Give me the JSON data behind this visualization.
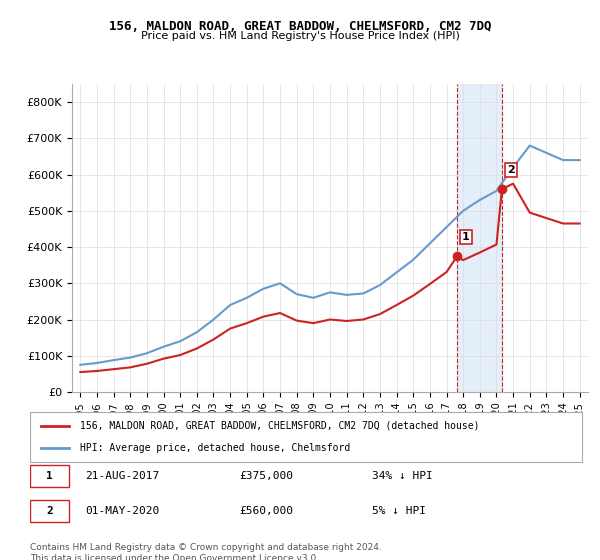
{
  "title": "156, MALDON ROAD, GREAT BADDOW, CHELMSFORD, CM2 7DQ",
  "subtitle": "Price paid vs. HM Land Registry's House Price Index (HPI)",
  "hpi_label": "HPI: Average price, detached house, Chelmsford",
  "property_label": "156, MALDON ROAD, GREAT BADDOW, CHELMSFORD, CM2 7DQ (detached house)",
  "footer": "Contains HM Land Registry data © Crown copyright and database right 2024.\nThis data is licensed under the Open Government Licence v3.0.",
  "sale1_label": "1",
  "sale1_date": "21-AUG-2017",
  "sale1_price": "£375,000",
  "sale1_hpi": "34% ↓ HPI",
  "sale2_label": "2",
  "sale2_date": "01-MAY-2020",
  "sale2_price": "£560,000",
  "sale2_hpi": "5% ↓ HPI",
  "sale1_year": 2017.64,
  "sale2_year": 2020.33,
  "sale1_price_val": 375000,
  "sale2_price_val": 560000,
  "ylim": [
    0,
    850000
  ],
  "yticks": [
    0,
    100000,
    200000,
    300000,
    400000,
    500000,
    600000,
    700000,
    800000
  ],
  "ytick_labels": [
    "£0",
    "£100K",
    "£200K",
    "£300K",
    "£400K",
    "£500K",
    "£600K",
    "£700K",
    "£800K"
  ],
  "hpi_color": "#6699cc",
  "property_color": "#cc2222",
  "sale_marker_color1": "#cc2222",
  "sale_marker_color2": "#cc2222",
  "shade_color": "#cce0f5",
  "grid_color": "#dddddd",
  "background_color": "#ffffff",
  "hpi_years": [
    1995,
    1996,
    1997,
    1998,
    1999,
    2000,
    2001,
    2002,
    2003,
    2004,
    2005,
    2006,
    2007,
    2008,
    2009,
    2010,
    2011,
    2012,
    2013,
    2014,
    2015,
    2016,
    2017,
    2018,
    2019,
    2020,
    2021,
    2022,
    2023,
    2024,
    2025
  ],
  "hpi_values": [
    75000,
    80000,
    88000,
    95000,
    107000,
    125000,
    140000,
    165000,
    200000,
    240000,
    260000,
    285000,
    300000,
    270000,
    260000,
    275000,
    268000,
    272000,
    295000,
    330000,
    365000,
    410000,
    455000,
    500000,
    530000,
    555000,
    620000,
    680000,
    660000,
    640000,
    640000
  ],
  "property_years": [
    1995,
    1996,
    1997,
    1998,
    1999,
    2000,
    2001,
    2002,
    2003,
    2004,
    2005,
    2006,
    2007,
    2008,
    2009,
    2010,
    2011,
    2012,
    2013,
    2014,
    2015,
    2016,
    2017,
    2017.64,
    2018,
    2019,
    2020,
    2020.33,
    2021,
    2022,
    2023,
    2024,
    2025
  ],
  "property_values": [
    55000,
    58000,
    63000,
    68000,
    78000,
    92000,
    102000,
    120000,
    145000,
    175000,
    190000,
    208000,
    218000,
    197000,
    190000,
    200000,
    196000,
    200000,
    215000,
    240000,
    266000,
    298000,
    331000,
    375000,
    364000,
    385000,
    407000,
    560000,
    575000,
    495000,
    480000,
    465000,
    465000
  ],
  "xlim_start": 1994.5,
  "xlim_end": 2025.5,
  "xticks": [
    1995,
    1996,
    1997,
    1998,
    1999,
    2000,
    2001,
    2002,
    2003,
    2004,
    2005,
    2006,
    2007,
    2008,
    2009,
    2010,
    2011,
    2012,
    2013,
    2014,
    2015,
    2016,
    2017,
    2018,
    2019,
    2020,
    2021,
    2022,
    2023,
    2024,
    2025
  ]
}
